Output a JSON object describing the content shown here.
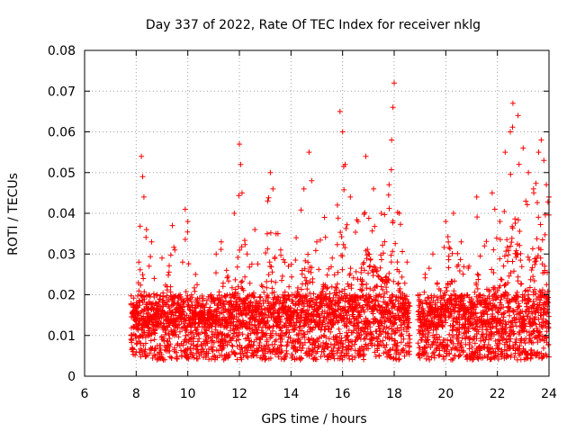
{
  "colors": {
    "series": "#ff0000",
    "grid": "#a0a0a0",
    "axis": "#000000",
    "background": "#ffffff"
  },
  "chart_data": {
    "type": "scatter",
    "title": "Day 337 of 2022, Rate Of TEC Index for receiver nklg",
    "xlabel": "GPS time / hours",
    "ylabel": "ROTI / TECUs",
    "xlim": [
      6,
      24
    ],
    "ylim": [
      0,
      0.08
    ],
    "xticks": [
      6,
      8,
      10,
      12,
      14,
      16,
      18,
      20,
      22,
      24
    ],
    "xtick_labels": [
      "6",
      "8",
      "10",
      "12",
      "14",
      "16",
      "18",
      "20",
      "22",
      "24"
    ],
    "yticks": [
      0,
      0.01,
      0.02,
      0.03,
      0.04,
      0.05,
      0.06,
      0.07,
      0.08
    ],
    "ytick_labels": [
      "0",
      "0.01",
      "0.02",
      "0.03",
      "0.04",
      "0.05",
      "0.06",
      "0.07",
      "0.08"
    ],
    "grid": true,
    "marker": "+",
    "series": [
      {
        "name": "ROTI",
        "color": "#ff0000",
        "data_gap_hours": [
          18.6,
          18.9
        ],
        "x": [
          7.8,
          7.9,
          8.0,
          8.1,
          8.2,
          8.25,
          8.3,
          8.4,
          8.5,
          8.6,
          8.7,
          8.8,
          9.0,
          9.2,
          9.4,
          9.5,
          9.7,
          9.8,
          9.9,
          10.0,
          10.1,
          10.3,
          10.6,
          10.9,
          11.1,
          11.3,
          11.5,
          11.8,
          12.0,
          12.05,
          12.1,
          12.3,
          12.6,
          12.9,
          13.1,
          13.2,
          13.3,
          13.6,
          13.9,
          14.2,
          14.5,
          14.7,
          14.8,
          15.0,
          15.3,
          15.6,
          15.8,
          15.9,
          16.0,
          16.1,
          16.3,
          16.6,
          16.9,
          17.2,
          17.5,
          17.8,
          17.9,
          17.95,
          18.0,
          18.2,
          18.5,
          19.0,
          19.2,
          19.5,
          19.8,
          20.0,
          20.3,
          20.6,
          20.9,
          21.2,
          21.5,
          21.8,
          21.9,
          22.1,
          22.3,
          22.5,
          22.6,
          22.8,
          23.0,
          23.2,
          23.4,
          23.6,
          23.7,
          23.8,
          23.9,
          24.0
        ],
        "y": [
          0.009,
          0.012,
          0.018,
          0.028,
          0.054,
          0.049,
          0.044,
          0.036,
          0.027,
          0.033,
          0.024,
          0.02,
          0.029,
          0.022,
          0.037,
          0.031,
          0.02,
          0.028,
          0.041,
          0.038,
          0.019,
          0.025,
          0.016,
          0.02,
          0.03,
          0.033,
          0.026,
          0.04,
          0.057,
          0.052,
          0.045,
          0.03,
          0.036,
          0.022,
          0.043,
          0.05,
          0.046,
          0.031,
          0.027,
          0.034,
          0.046,
          0.055,
          0.048,
          0.033,
          0.039,
          0.029,
          0.042,
          0.065,
          0.06,
          0.052,
          0.044,
          0.038,
          0.054,
          0.046,
          0.04,
          0.047,
          0.058,
          0.066,
          0.072,
          0.04,
          0.028,
          0.02,
          0.025,
          0.03,
          0.021,
          0.038,
          0.04,
          0.033,
          0.027,
          0.044,
          0.032,
          0.045,
          0.041,
          0.038,
          0.055,
          0.06,
          0.067,
          0.064,
          0.056,
          0.05,
          0.046,
          0.055,
          0.058,
          0.053,
          0.047,
          0.044
        ]
      }
    ]
  }
}
